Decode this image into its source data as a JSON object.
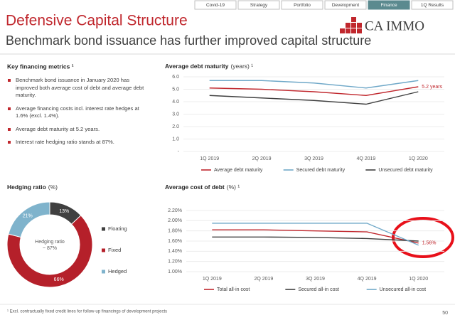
{
  "nav": {
    "tabs": [
      "Covid-19",
      "Strategy",
      "Portfolio",
      "Development",
      "Finance",
      "1Q Results"
    ],
    "active": 4
  },
  "header": {
    "title": "Defensive Capital Structure",
    "subtitle": "Benchmark bond issuance has further improved capital structure",
    "logo": "CA IMMO"
  },
  "metrics": {
    "title": "Key financing metrics ¹",
    "bullets": [
      "Benchmark bond issuance in January 2020 has improved both average cost of debt and average debt maturity.",
      "Average financing costs incl. interest rate hedges at 1.6% (excl. 1.4%).",
      "Average debt maturity at 5.2 years.",
      "Interest rate hedging ratio stands at 87%."
    ]
  },
  "chart_data": [
    {
      "type": "line",
      "title": "Average debt maturity",
      "unit": "(years) ¹",
      "categories": [
        "1Q 2019",
        "2Q 2019",
        "3Q 2019",
        "4Q 2019",
        "1Q 2020"
      ],
      "ylim": [
        0,
        6
      ],
      "yticks": [
        {
          "value": 0,
          "label": "-"
        },
        {
          "value": 1,
          "label": "1.0"
        },
        {
          "value": 2,
          "label": "2.0"
        },
        {
          "value": 3,
          "label": "3.0"
        },
        {
          "value": 4,
          "label": "4.0"
        },
        {
          "value": 5,
          "label": "5.0"
        },
        {
          "value": 6,
          "label": "6.0"
        }
      ],
      "grid": true,
      "series": [
        {
          "name": "Average debt maturity",
          "color": "#c0272d",
          "values": [
            5.1,
            5.0,
            4.8,
            4.5,
            5.2
          ],
          "value_labels": [
            null,
            null,
            null,
            null,
            "5.2 years"
          ]
        },
        {
          "name": "Secured debt maturity",
          "color": "#6fa8c8",
          "values": [
            5.7,
            5.7,
            5.5,
            5.1,
            5.7
          ]
        },
        {
          "name": "Unsecured debt maturity",
          "color": "#404040",
          "values": [
            4.5,
            4.3,
            4.1,
            3.8,
            4.8
          ]
        }
      ]
    },
    {
      "type": "pie",
      "title": "Hedging ratio",
      "unit": "(%)",
      "categories": [
        "Floating",
        "Fixed",
        "Hedged"
      ],
      "values": [
        13,
        66,
        21
      ],
      "value_labels": [
        "13%",
        "66%",
        "21%"
      ],
      "colors": [
        "#404040",
        "#b5202a",
        "#7fb3cc"
      ],
      "center_text": [
        "Hedging ratio",
        "~ 87%"
      ]
    },
    {
      "type": "line",
      "title": "Average cost of debt",
      "unit": "(%) ¹",
      "categories": [
        "1Q 2019",
        "2Q 2019",
        "3Q 2019",
        "4Q 2019",
        "1Q 2020"
      ],
      "ylim": [
        1.0,
        2.2
      ],
      "yticks": [
        {
          "value": 1.0,
          "label": "1.00%"
        },
        {
          "value": 1.2,
          "label": "1.20%"
        },
        {
          "value": 1.4,
          "label": "1.40%"
        },
        {
          "value": 1.6,
          "label": "1.60%"
        },
        {
          "value": 1.8,
          "label": "1.80%"
        },
        {
          "value": 2.0,
          "label": "2.00%"
        },
        {
          "value": 2.2,
          "label": "2.20%"
        }
      ],
      "grid": true,
      "series": [
        {
          "name": "Total all-in cost",
          "color": "#c0272d",
          "values": [
            1.82,
            1.82,
            1.8,
            1.78,
            1.56
          ],
          "value_labels": [
            null,
            null,
            null,
            null,
            "1.56%"
          ]
        },
        {
          "name": "Secured all-in cost",
          "color": "#404040",
          "values": [
            1.68,
            1.68,
            1.67,
            1.65,
            1.6
          ]
        },
        {
          "name": "Unsecured all-in cost",
          "color": "#6fa8c8",
          "values": [
            1.95,
            1.95,
            1.95,
            1.95,
            1.52
          ]
        }
      ]
    }
  ],
  "footnote": "¹ Excl. contractually fixed credit lines for follow-up financings of development projects",
  "page": 50
}
